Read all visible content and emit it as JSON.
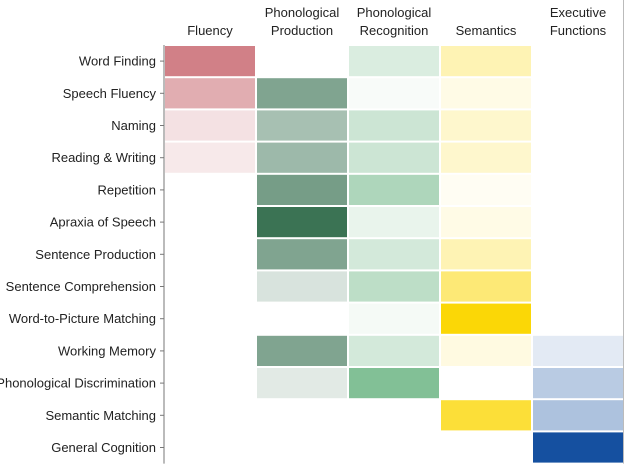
{
  "chart_data": {
    "type": "heatmap",
    "title": "",
    "columns": [
      {
        "lines": [
          "Fluency"
        ],
        "palette": "red"
      },
      {
        "lines": [
          "Phonological",
          "Production"
        ],
        "palette": "green-dark"
      },
      {
        "lines": [
          "Phonological",
          "Recognition"
        ],
        "palette": "green-light"
      },
      {
        "lines": [
          "Semantics"
        ],
        "palette": "yellow"
      },
      {
        "lines": [
          "Executive",
          "Functions"
        ],
        "palette": "blue"
      }
    ],
    "rows": [
      "Word Finding",
      "Speech Fluency",
      "Naming",
      "Reading & Writing",
      "Repetition",
      "Apraxia of Speech",
      "Sentence Production",
      "Sentence Comprehension",
      "Word-to-Picture Matching",
      "Working Memory",
      "Phonological Discrimination",
      "Semantic Matching",
      "General Cognition"
    ],
    "values": [
      [
        0.85,
        0.0,
        0.25,
        0.3,
        0.0
      ],
      [
        0.55,
        0.65,
        0.05,
        0.1,
        0.0
      ],
      [
        0.2,
        0.45,
        0.35,
        0.2,
        0.0
      ],
      [
        0.15,
        0.5,
        0.35,
        0.2,
        0.0
      ],
      [
        0.0,
        0.7,
        0.55,
        0.05,
        0.0
      ],
      [
        0.0,
        1.0,
        0.15,
        0.1,
        0.0
      ],
      [
        0.0,
        0.65,
        0.3,
        0.3,
        0.0
      ],
      [
        0.0,
        0.2,
        0.45,
        0.55,
        0.0
      ],
      [
        0.0,
        0.0,
        0.07,
        1.0,
        0.0
      ],
      [
        0.0,
        0.65,
        0.3,
        0.12,
        0.12
      ],
      [
        0.0,
        0.15,
        0.85,
        0.0,
        0.3
      ],
      [
        0.0,
        0.0,
        0.0,
        0.8,
        0.35
      ],
      [
        0.0,
        0.0,
        0.0,
        0.0,
        1.0
      ]
    ],
    "palettes": {
      "red": "#c96a72",
      "green-dark": "#3b7354",
      "green-light": "#6cb583",
      "yellow": "#fbd706",
      "blue": "#1550a0"
    },
    "frame_color": "#777777"
  }
}
